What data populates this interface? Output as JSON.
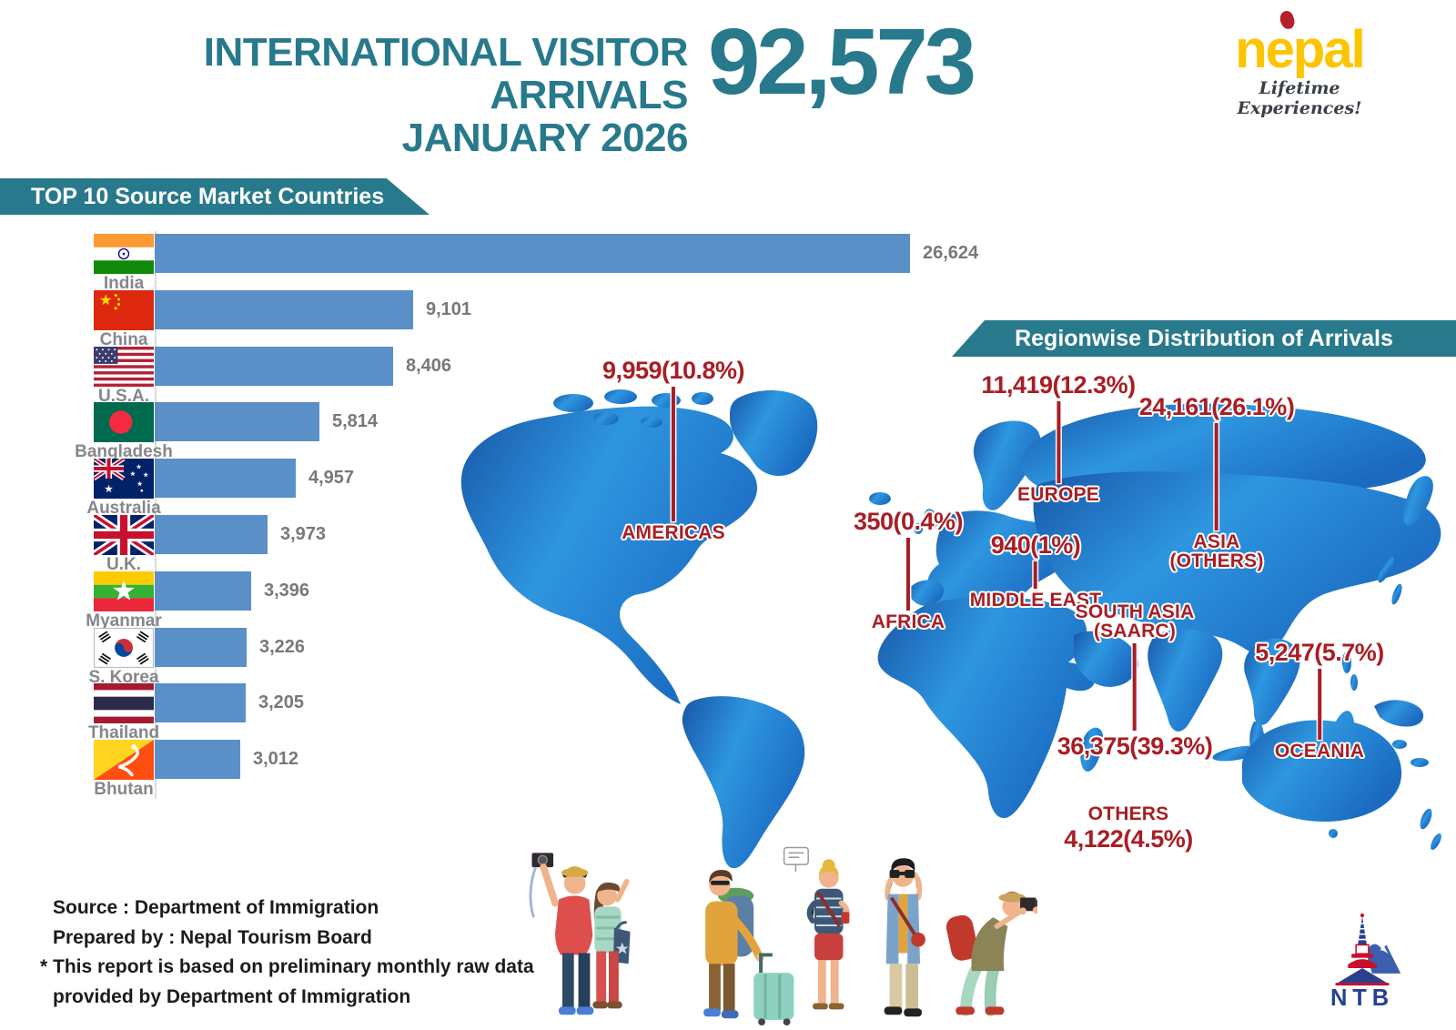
{
  "header": {
    "title_line1": "INTERNATIONAL VISITOR ARRIVALS",
    "title_line2": "JANUARY 2026",
    "total": "92,573"
  },
  "logo": {
    "brand": "nepal",
    "tagline": "Lifetime Experiences!"
  },
  "top_chart": {
    "banner": "TOP 10 Source Market Countries"
  },
  "region_section": {
    "banner": "Regionwise Distribution of Arrivals"
  },
  "colors": {
    "teal": "#28798c",
    "red": "#a81e24",
    "bar_blue": "#5a8fc7",
    "map_blue_dark": "#1857a8",
    "map_blue_light": "#2e96e0"
  },
  "chart_data": [
    {
      "type": "bar",
      "title": "TOP 10 Source Market Countries",
      "orientation": "horizontal",
      "categories": [
        "India",
        "China",
        "U.S.A.",
        "Bangladesh",
        "Australia",
        "U.K.",
        "Myanmar",
        "S. Korea",
        "Thailand",
        "Bhutan"
      ],
      "values": [
        26624,
        9101,
        8406,
        5814,
        4957,
        3973,
        3396,
        3226,
        3205,
        3012
      ],
      "value_labels": [
        "26,624",
        "9,101",
        "8,406",
        "5,814",
        "4,957",
        "3,973",
        "3,396",
        "3,226",
        "3,205",
        "3,012"
      ],
      "xlim": [
        0,
        27000
      ],
      "grid": false,
      "legend": false,
      "bar_color": "#5a8fc7"
    },
    {
      "type": "pie",
      "title": "Regionwise Distribution of Arrivals",
      "render_style": "world-map-callouts",
      "categories": [
        "AMERICAS",
        "EUROPE",
        "ASIA (OTHERS)",
        "AFRICA",
        "MIDDLE EAST",
        "SOUTH ASIA (SAARC)",
        "OCEANIA",
        "OTHERS"
      ],
      "values": [
        9959,
        11419,
        24161,
        350,
        940,
        36375,
        5247,
        4122
      ],
      "percent_labels": [
        "10.8%",
        "12.3%",
        "26.1%",
        "0.4%",
        "1%",
        "39.3%",
        "5.7%",
        "4.5%"
      ],
      "value_labels": [
        "9,959(10.8%)",
        "11,419(12.3%)",
        "24,161(26.1%)",
        "350(0.4%)",
        "940(1%)",
        "36,375(39.3%)",
        "5,247(5.7%)",
        "4,122(4.5%)"
      ],
      "total": 92573
    }
  ],
  "countries": [
    {
      "name": "India",
      "flag": "india",
      "value": 26624,
      "value_label": "26,624"
    },
    {
      "name": "China",
      "flag": "china",
      "value": 9101,
      "value_label": "9,101"
    },
    {
      "name": "U.S.A.",
      "flag": "usa",
      "value": 8406,
      "value_label": "8,406"
    },
    {
      "name": "Bangladesh",
      "flag": "bangladesh",
      "value": 5814,
      "value_label": "5,814"
    },
    {
      "name": "Australia",
      "flag": "australia",
      "value": 4957,
      "value_label": "4,957"
    },
    {
      "name": "U.K.",
      "flag": "uk",
      "value": 3973,
      "value_label": "3,973"
    },
    {
      "name": "Myanmar",
      "flag": "myanmar",
      "value": 3396,
      "value_label": "3,396"
    },
    {
      "name": "S. Korea",
      "flag": "skorea",
      "value": 3226,
      "value_label": "3,226"
    },
    {
      "name": "Thailand",
      "flag": "thailand",
      "value": 3205,
      "value_label": "3,205"
    },
    {
      "name": "Bhutan",
      "flag": "bhutan",
      "value": 3012,
      "value_label": "3,012"
    }
  ],
  "regions": [
    {
      "id": "americas",
      "label_lines": [
        "AMERICAS"
      ],
      "value_label": "9,959(10.8%)"
    },
    {
      "id": "europe",
      "label_lines": [
        "EUROPE"
      ],
      "value_label": "11,419(12.3%)"
    },
    {
      "id": "asia-others",
      "label_lines": [
        "ASIA",
        "(OTHERS)"
      ],
      "value_label": "24,161(26.1%)"
    },
    {
      "id": "africa",
      "label_lines": [
        "AFRICA"
      ],
      "value_label": "350(0.4%)"
    },
    {
      "id": "middle-east",
      "label_lines": [
        "MIDDLE EAST"
      ],
      "value_label": "940(1%)"
    },
    {
      "id": "south-asia",
      "label_lines": [
        "SOUTH ASIA",
        "(SAARC)"
      ],
      "value_label": "36,375(39.3%)"
    },
    {
      "id": "oceania",
      "label_lines": [
        "OCEANIA"
      ],
      "value_label": "5,247(5.7%)"
    },
    {
      "id": "others",
      "label_lines": [
        "OTHERS"
      ],
      "value_label": "4,122(4.5%)"
    }
  ],
  "footer": {
    "source": "Source : Department of Immigration",
    "prepared": "Prepared by : Nepal Tourism Board",
    "note_line1": "* This report is based on preliminary monthly raw data",
    "note_line2": "provided by Department of Immigration"
  },
  "ntb_logo": {
    "text": "NTB"
  }
}
